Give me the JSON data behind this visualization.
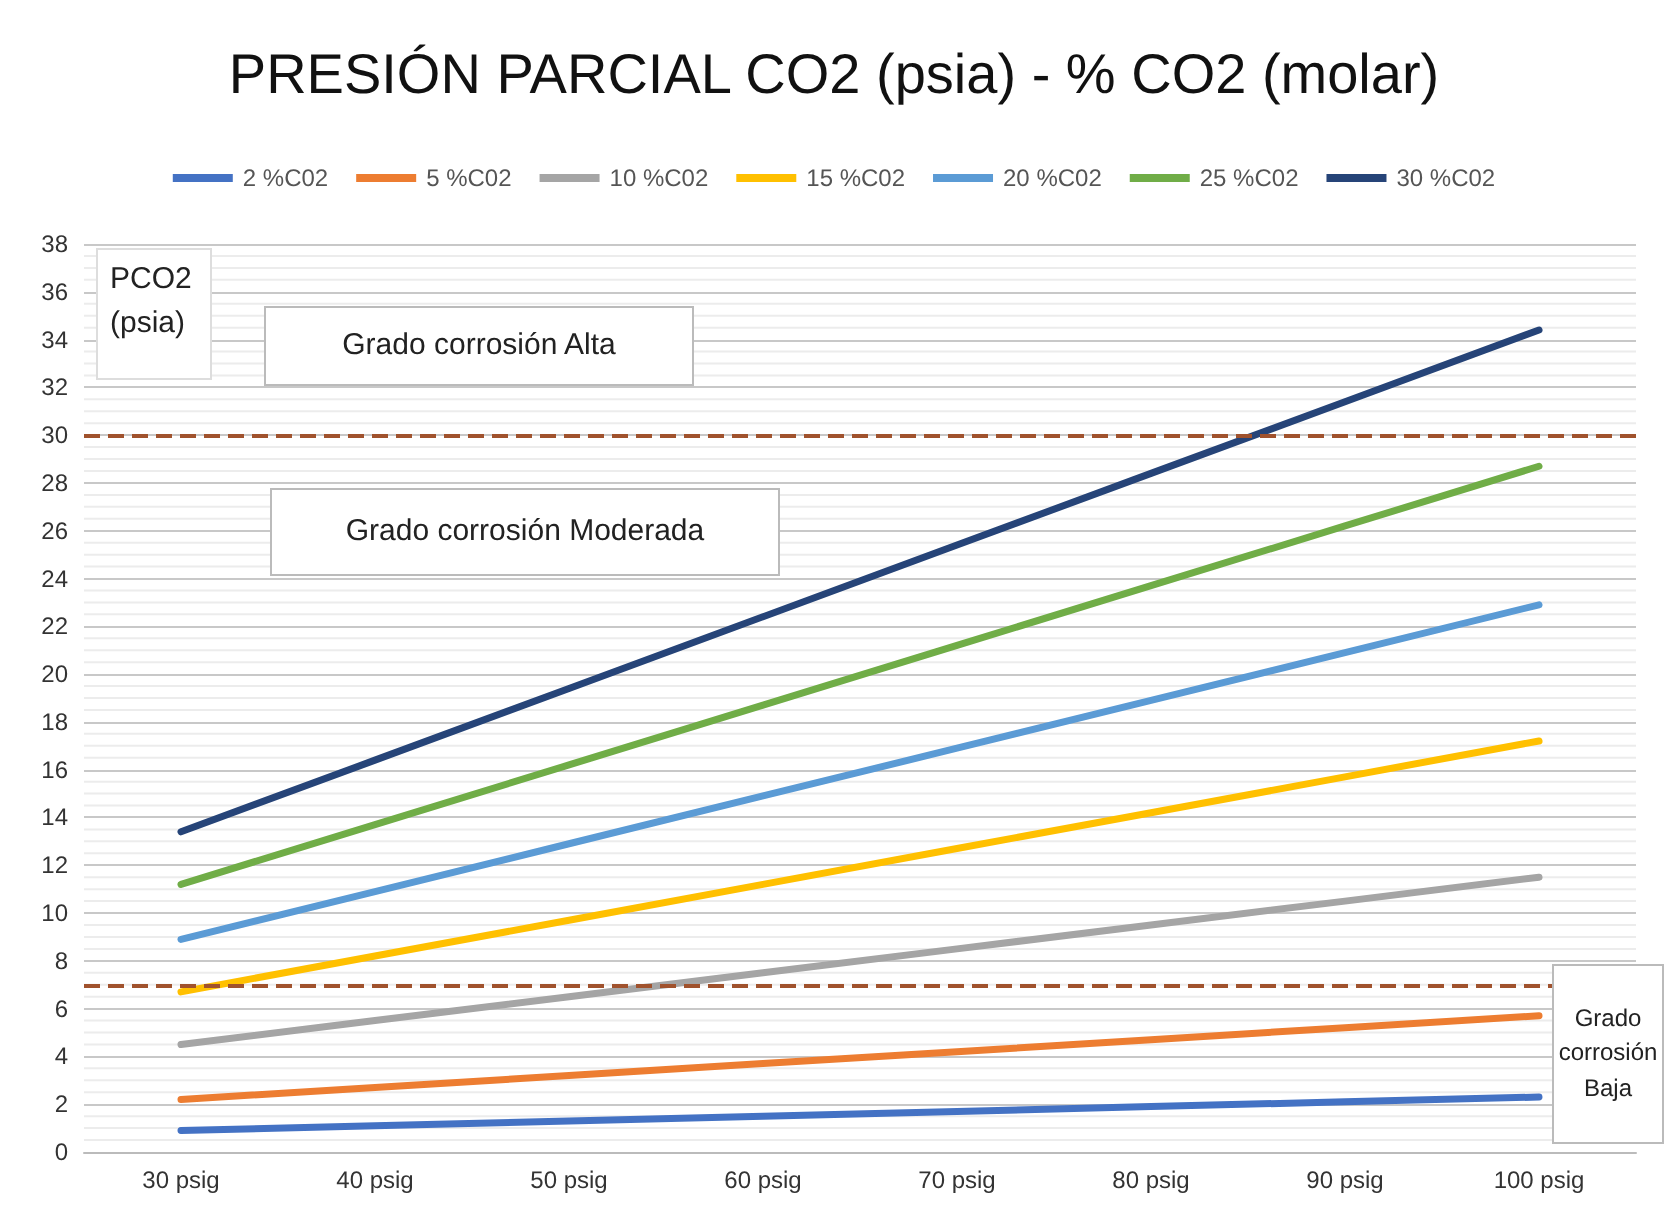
{
  "chart_data": {
    "type": "line",
    "title": "PRESIÓN PARCIAL CO2 (psia) - % CO2 (molar)",
    "ylabel": "PCO2 (psia)",
    "categories": [
      "30 psig",
      "40 psig",
      "50 psig",
      "60 psig",
      "70 psig",
      "80 psig",
      "90 psig",
      "100 psig"
    ],
    "series": [
      {
        "name": "2 %C02",
        "color": "#4472c4",
        "values": [
          0.9,
          1.1,
          1.3,
          1.5,
          1.7,
          1.9,
          2.1,
          2.3
        ]
      },
      {
        "name": "5 %C02",
        "color": "#ed7d31",
        "values": [
          2.2,
          2.7,
          3.2,
          3.7,
          4.2,
          4.7,
          5.2,
          5.7
        ]
      },
      {
        "name": "10 %C02",
        "color": "#a5a5a5",
        "values": [
          4.5,
          5.5,
          6.5,
          7.5,
          8.5,
          9.5,
          10.5,
          11.5
        ]
      },
      {
        "name": "15 %C02",
        "color": "#ffc000",
        "values": [
          6.7,
          8.2,
          9.7,
          11.2,
          12.7,
          14.2,
          15.7,
          17.2
        ]
      },
      {
        "name": "20 %C02",
        "color": "#5b9bd5",
        "values": [
          8.9,
          10.9,
          12.9,
          14.9,
          16.9,
          18.9,
          20.9,
          22.9
        ]
      },
      {
        "name": "25 %C02",
        "color": "#70ad47",
        "values": [
          11.2,
          13.7,
          16.2,
          18.7,
          21.2,
          23.7,
          26.2,
          28.7
        ]
      },
      {
        "name": "30 %C02",
        "color": "#264478",
        "values": [
          13.4,
          16.4,
          19.4,
          22.4,
          25.4,
          28.4,
          31.4,
          34.4
        ]
      }
    ],
    "ylim": [
      0,
      38
    ],
    "yticks": [
      0,
      2,
      4,
      6,
      8,
      10,
      12,
      14,
      16,
      18,
      20,
      22,
      24,
      26,
      28,
      30,
      32,
      34,
      36,
      38
    ],
    "grid": "y",
    "legend": "top",
    "marker": "none",
    "line_style": "solid",
    "ref_lines": [
      {
        "axis": "y",
        "value": 30,
        "color": "#a0522d",
        "line_style": "dashed"
      },
      {
        "axis": "y",
        "value": 7,
        "color": "#a0522d",
        "line_style": "dashed"
      }
    ],
    "annotations": [
      "Grado corrosión Alta",
      "Grado corrosión Moderada",
      "Grado corrosión Baja"
    ]
  }
}
